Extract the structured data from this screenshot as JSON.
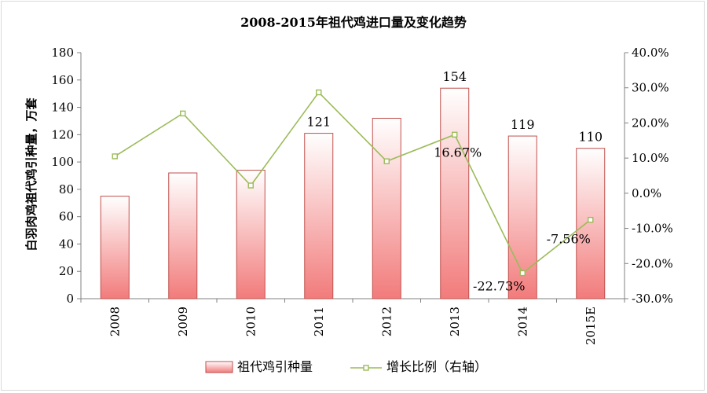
{
  "chart_data": {
    "type": "bar+line",
    "title": "2008-2015年祖代鸡进口量及变化趋势",
    "categories": [
      "2008",
      "2009",
      "2010",
      "2011",
      "2012",
      "2013",
      "2014",
      "2015E"
    ],
    "ylabel_left": "白羽肉鸡祖代鸡引种量，万套",
    "ylim_left": [
      0,
      180
    ],
    "yticks_left": [
      "0",
      "20",
      "40",
      "60",
      "80",
      "100",
      "120",
      "140",
      "160",
      "180"
    ],
    "ylim_right": [
      -30,
      40
    ],
    "yticks_right": [
      "-30.0%",
      "-20.0%",
      "-10.0%",
      "0.0%",
      "10.0%",
      "20.0%",
      "30.0%",
      "40.0%"
    ],
    "series": [
      {
        "name": "祖代鸡引种量",
        "type": "bar",
        "axis": "left",
        "values": [
          75,
          92,
          94,
          121,
          132,
          154,
          119,
          110
        ],
        "labels": [
          "",
          "",
          "",
          "121",
          "",
          "154",
          "119",
          "110"
        ]
      },
      {
        "name": "增长比例（右轴）",
        "type": "line",
        "axis": "right",
        "values": [
          10.5,
          22.7,
          2.2,
          28.7,
          9.1,
          16.67,
          -22.73,
          -7.56
        ],
        "labels": [
          "",
          "",
          "",
          "",
          "",
          "16.67%",
          "-22.73%",
          "-7.56%"
        ]
      }
    ],
    "colors": {
      "bar_top": "#ffffff",
      "bar_bottom": "#f27b7b",
      "bar_border": "#c0504d",
      "line": "#9bbb59",
      "marker_fill": "#ffffff"
    },
    "legend_position": "bottom",
    "grid": false
  }
}
